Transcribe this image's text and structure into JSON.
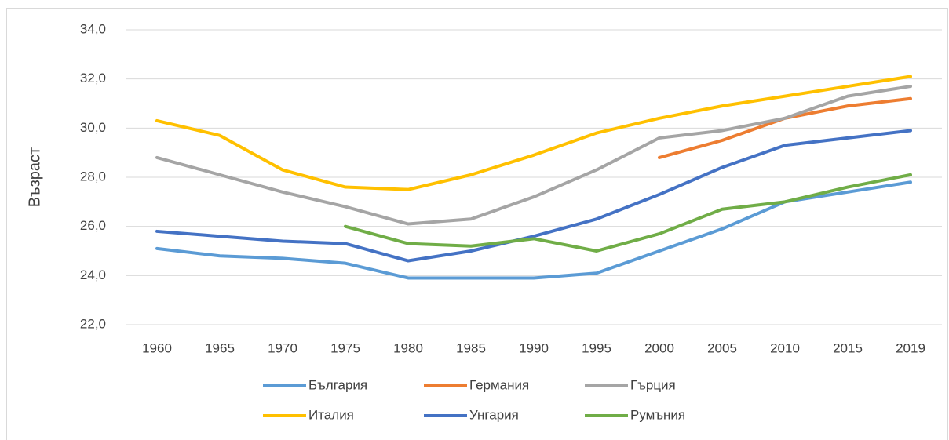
{
  "chart_data": {
    "type": "line",
    "y_label": "Възраст",
    "categories": [
      "1960",
      "1965",
      "1970",
      "1975",
      "1980",
      "1985",
      "1990",
      "1995",
      "2000",
      "2005",
      "2010",
      "2015",
      "2019"
    ],
    "series": [
      {
        "name": "България",
        "color": "#5b9bd5",
        "values": [
          25.1,
          24.8,
          24.7,
          24.5,
          23.9,
          23.9,
          23.9,
          24.1,
          25.0,
          25.9,
          27.0,
          27.4,
          27.8
        ]
      },
      {
        "name": "Германия",
        "color": "#ed7d31",
        "values": [
          null,
          null,
          null,
          null,
          null,
          null,
          null,
          null,
          28.8,
          29.5,
          30.4,
          30.9,
          31.2
        ]
      },
      {
        "name": "Гърция",
        "color": "#a5a5a5",
        "values": [
          28.8,
          28.1,
          27.4,
          26.8,
          26.1,
          26.3,
          27.2,
          28.3,
          29.6,
          29.9,
          30.4,
          31.3,
          31.7
        ]
      },
      {
        "name": "Италия",
        "color": "#ffc000",
        "values": [
          30.3,
          29.7,
          28.3,
          27.6,
          27.5,
          28.1,
          28.9,
          29.8,
          30.4,
          30.9,
          31.3,
          31.7,
          32.1
        ]
      },
      {
        "name": "Унгария",
        "color": "#4472c4",
        "values": [
          25.8,
          25.6,
          25.4,
          25.3,
          24.6,
          25.0,
          25.6,
          26.3,
          27.3,
          28.4,
          29.3,
          29.6,
          29.9
        ]
      },
      {
        "name": "Румъния",
        "color": "#70ad47",
        "values": [
          null,
          null,
          null,
          26.0,
          25.3,
          25.2,
          25.5,
          25.0,
          25.7,
          26.7,
          27.0,
          27.6,
          28.1
        ]
      }
    ],
    "ylim": [
      22,
      34
    ],
    "yticks": [
      {
        "value": 22,
        "label": "22,0"
      },
      {
        "value": 24,
        "label": "24,0"
      },
      {
        "value": 26,
        "label": "26,0"
      },
      {
        "value": 28,
        "label": "28,0"
      },
      {
        "value": 30,
        "label": "30,0"
      },
      {
        "value": 32,
        "label": "32,0"
      },
      {
        "value": 34,
        "label": "34,0"
      }
    ],
    "grid": true,
    "legend": "bottom"
  }
}
